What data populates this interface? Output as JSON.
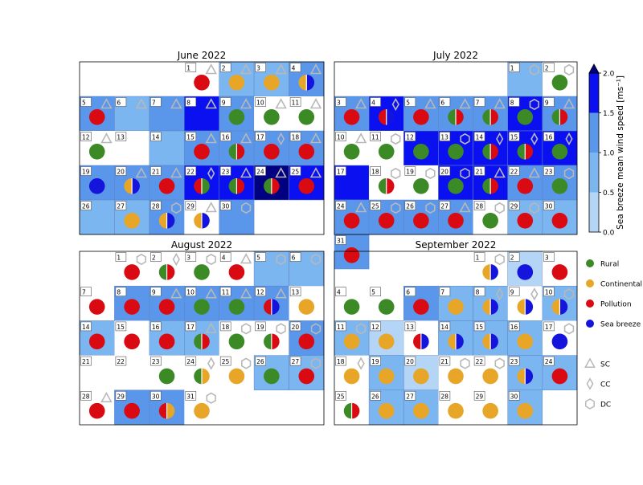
{
  "chart_data": {
    "type": "heatmap",
    "title": "",
    "colorbar": {
      "label": "Sea breeze mean wind speed [ms⁻¹]",
      "ticks": [
        "0.0",
        "0.5",
        "1.0",
        "1.5",
        "2.0"
      ],
      "bins": [
        0,
        0.5,
        1.0,
        1.5,
        2.0
      ],
      "colors": [
        "#b4d5f5",
        "#7cb6f0",
        "#5a96ea",
        "#0a10f0"
      ],
      "over_color": "#000080"
    },
    "category_colors": {
      "R": "#3c8a26",
      "C": "#e8a628",
      "P": "#d90a12",
      "S": "#1414dc"
    },
    "legend": {
      "circles": [
        {
          "key": "R",
          "label": "Rural"
        },
        {
          "key": "C",
          "label": "Continental"
        },
        {
          "key": "P",
          "label": "Pollution"
        },
        {
          "key": "S",
          "label": "Sea breeze"
        }
      ],
      "shapes": [
        {
          "shape": "triangle",
          "label": "SC"
        },
        {
          "shape": "diamond",
          "label": "CC"
        },
        {
          "shape": "hexagon",
          "label": "DC"
        }
      ]
    },
    "months": [
      {
        "title": "June 2022",
        "start_col": 3,
        "days": [
          {
            "d": 1,
            "ws": null,
            "c": [
              "P"
            ],
            "s": "T"
          },
          {
            "d": 2,
            "ws": 0.9,
            "c": [
              "C"
            ],
            "s": "T"
          },
          {
            "d": 3,
            "ws": 0.9,
            "c": [
              "C"
            ],
            "s": "T"
          },
          {
            "d": 4,
            "ws": 1.2,
            "c": [
              "C",
              "S"
            ],
            "s": "T"
          },
          {
            "d": 5,
            "ws": 1.2,
            "c": [
              "P"
            ],
            "s": "T"
          },
          {
            "d": 6,
            "ws": 0.8,
            "c": [],
            "s": "T"
          },
          {
            "d": 7,
            "ws": 1.2,
            "c": [],
            "s": "T"
          },
          {
            "d": 8,
            "ws": 1.7,
            "c": [],
            "s": "T"
          },
          {
            "d": 9,
            "ws": 1.2,
            "c": [
              "R"
            ],
            "s": "T"
          },
          {
            "d": 10,
            "ws": null,
            "c": [
              "R"
            ],
            "s": "T"
          },
          {
            "d": 11,
            "ws": null,
            "c": [
              "R"
            ],
            "s": "T"
          },
          {
            "d": 12,
            "ws": null,
            "c": [
              "R"
            ],
            "s": "T"
          },
          {
            "d": 13,
            "ws": null,
            "c": [],
            "s": null
          },
          {
            "d": 14,
            "ws": 0.9,
            "c": [],
            "s": null
          },
          {
            "d": 15,
            "ws": 1.2,
            "c": [
              "P"
            ],
            "s": "T"
          },
          {
            "d": 16,
            "ws": 1.2,
            "c": [
              "R",
              "P"
            ],
            "s": "T"
          },
          {
            "d": 17,
            "ws": 1.2,
            "c": [
              "P"
            ],
            "s": "D"
          },
          {
            "d": 18,
            "ws": 1.2,
            "c": [
              "P"
            ],
            "s": "T"
          },
          {
            "d": 19,
            "ws": 1.2,
            "c": [
              "S"
            ],
            "s": null
          },
          {
            "d": 20,
            "ws": 1.2,
            "c": [
              "C",
              "S"
            ],
            "s": "T"
          },
          {
            "d": 21,
            "ws": 1.2,
            "c": [
              "P"
            ],
            "s": "T"
          },
          {
            "d": 22,
            "ws": 1.7,
            "c": [
              "P",
              "R"
            ],
            "s": "D"
          },
          {
            "d": 23,
            "ws": 1.7,
            "c": [
              "R",
              "P"
            ],
            "s": "T"
          },
          {
            "d": 24,
            "ws": 2.2,
            "c": [
              "R",
              "P"
            ],
            "s": "T"
          },
          {
            "d": 25,
            "ws": 1.7,
            "c": [
              "P"
            ],
            "s": "T"
          },
          {
            "d": 26,
            "ws": 0.9,
            "c": [],
            "s": null
          },
          {
            "d": 27,
            "ws": 0.9,
            "c": [
              "C"
            ],
            "s": null
          },
          {
            "d": 28,
            "ws": 1.2,
            "c": [
              "C",
              "S"
            ],
            "s": "H"
          },
          {
            "d": 29,
            "ws": null,
            "c": [
              "C",
              "S"
            ],
            "s": "T"
          },
          {
            "d": 30,
            "ws": 1.2,
            "c": [],
            "s": "H"
          }
        ]
      },
      {
        "title": "July 2022",
        "start_col": 5,
        "days": [
          {
            "d": 1,
            "ws": 0.9,
            "c": [],
            "s": "H"
          },
          {
            "d": 2,
            "ws": null,
            "c": [
              "R"
            ],
            "s": "H"
          },
          {
            "d": 3,
            "ws": 1.2,
            "c": [
              "P"
            ],
            "s": "T"
          },
          {
            "d": 4,
            "ws": 1.7,
            "c": [
              "P",
              "S"
            ],
            "s": "D"
          },
          {
            "d": 5,
            "ws": 1.2,
            "c": [
              "P"
            ],
            "s": "T"
          },
          {
            "d": 6,
            "ws": 1.2,
            "c": [
              "R",
              "P"
            ],
            "s": "T"
          },
          {
            "d": 7,
            "ws": 1.2,
            "c": [
              "R",
              "P"
            ],
            "s": "T"
          },
          {
            "d": 8,
            "ws": 1.7,
            "c": [
              "R"
            ],
            "s": "H"
          },
          {
            "d": 9,
            "ws": 1.2,
            "c": [
              "R",
              "P"
            ],
            "s": "T"
          },
          {
            "d": 10,
            "ws": null,
            "c": [
              "R"
            ],
            "s": "T"
          },
          {
            "d": 11,
            "ws": null,
            "c": [
              "R"
            ],
            "s": "H"
          },
          {
            "d": 12,
            "ws": 1.7,
            "c": [
              "R"
            ],
            "s": null
          },
          {
            "d": 13,
            "ws": 1.7,
            "c": [
              "R"
            ],
            "s": "H"
          },
          {
            "d": 14,
            "ws": 1.7,
            "c": [
              "R",
              "P"
            ],
            "s": "D"
          },
          {
            "d": 15,
            "ws": 1.7,
            "c": [
              "R",
              "P"
            ],
            "s": "D"
          },
          {
            "d": 16,
            "ws": 1.7,
            "c": [
              "R"
            ],
            "s": "D"
          },
          {
            "d": 17,
            "ws": 1.7,
            "c": [],
            "s": null
          },
          {
            "d": 18,
            "ws": null,
            "c": [
              "R",
              "P"
            ],
            "s": "H"
          },
          {
            "d": 19,
            "ws": null,
            "c": [
              "R"
            ],
            "s": "H"
          },
          {
            "d": 20,
            "ws": 1.7,
            "c": [
              "R"
            ],
            "s": "H"
          },
          {
            "d": 21,
            "ws": 1.7,
            "c": [
              "R",
              "P"
            ],
            "s": "T"
          },
          {
            "d": 22,
            "ws": 1.2,
            "c": [
              "P"
            ],
            "s": "T"
          },
          {
            "d": 23,
            "ws": 1.2,
            "c": [
              "R"
            ],
            "s": "H"
          },
          {
            "d": 24,
            "ws": 1.2,
            "c": [
              "P"
            ],
            "s": "T"
          },
          {
            "d": 25,
            "ws": 1.2,
            "c": [
              "P"
            ],
            "s": "H"
          },
          {
            "d": 26,
            "ws": 1.2,
            "c": [
              "P"
            ],
            "s": "H"
          },
          {
            "d": 27,
            "ws": 1.2,
            "c": [
              "P"
            ],
            "s": "T"
          },
          {
            "d": 28,
            "ws": null,
            "c": [
              "R"
            ],
            "s": "H"
          },
          {
            "d": 29,
            "ws": 0.9,
            "c": [
              "P"
            ],
            "s": "H"
          },
          {
            "d": 30,
            "ws": 0.9,
            "c": [
              "P"
            ],
            "s": null
          },
          {
            "d": 31,
            "ws": 1.2,
            "c": [
              "P"
            ],
            "s": null
          }
        ]
      },
      {
        "title": "August 2022",
        "start_col": 1,
        "days": [
          {
            "d": 1,
            "ws": null,
            "c": [
              "P"
            ],
            "s": "H"
          },
          {
            "d": 2,
            "ws": null,
            "c": [
              "R",
              "P"
            ],
            "s": "D"
          },
          {
            "d": 3,
            "ws": null,
            "c": [
              "R"
            ],
            "s": "H"
          },
          {
            "d": 4,
            "ws": null,
            "c": [
              "P"
            ],
            "s": "T"
          },
          {
            "d": 5,
            "ws": 0.9,
            "c": [],
            "s": "H"
          },
          {
            "d": 6,
            "ws": 0.9,
            "c": [],
            "s": "H"
          },
          {
            "d": 7,
            "ws": null,
            "c": [
              "P"
            ],
            "s": null
          },
          {
            "d": 8,
            "ws": 1.2,
            "c": [
              "P"
            ],
            "s": null
          },
          {
            "d": 9,
            "ws": 1.2,
            "c": [
              "P"
            ],
            "s": "T"
          },
          {
            "d": 10,
            "ws": 1.2,
            "c": [
              "R"
            ],
            "s": "T"
          },
          {
            "d": 11,
            "ws": 1.2,
            "c": [
              "R"
            ],
            "s": "T"
          },
          {
            "d": 12,
            "ws": 1.2,
            "c": [
              "P",
              "S"
            ],
            "s": "T"
          },
          {
            "d": 13,
            "ws": null,
            "c": [
              "C"
            ],
            "s": null
          },
          {
            "d": 14,
            "ws": 0.9,
            "c": [
              "P"
            ],
            "s": null
          },
          {
            "d": 15,
            "ws": null,
            "c": [
              "P"
            ],
            "s": null
          },
          {
            "d": 16,
            "ws": 0.9,
            "c": [
              "P"
            ],
            "s": null
          },
          {
            "d": 17,
            "ws": 0.9,
            "c": [
              "R",
              "P"
            ],
            "s": "T"
          },
          {
            "d": 18,
            "ws": null,
            "c": [
              "R"
            ],
            "s": "H"
          },
          {
            "d": 19,
            "ws": null,
            "c": [
              "R",
              "P"
            ],
            "s": "H"
          },
          {
            "d": 20,
            "ws": 1.2,
            "c": [
              "P"
            ],
            "s": "H"
          },
          {
            "d": 21,
            "ws": null,
            "c": [],
            "s": null
          },
          {
            "d": 22,
            "ws": null,
            "c": [],
            "s": null
          },
          {
            "d": 23,
            "ws": null,
            "c": [
              "R"
            ],
            "s": null
          },
          {
            "d": 24,
            "ws": null,
            "c": [
              "R",
              "C"
            ],
            "s": "D"
          },
          {
            "d": 25,
            "ws": null,
            "c": [
              "C"
            ],
            "s": "H"
          },
          {
            "d": 26,
            "ws": 0.9,
            "c": [
              "R"
            ],
            "s": null
          },
          {
            "d": 27,
            "ws": 0.9,
            "c": [
              "P"
            ],
            "s": "H"
          },
          {
            "d": 28,
            "ws": null,
            "c": [
              "P"
            ],
            "s": "T"
          },
          {
            "d": 29,
            "ws": 1.2,
            "c": [
              "P"
            ],
            "s": null
          },
          {
            "d": 30,
            "ws": 1.2,
            "c": [
              "P",
              "C"
            ],
            "s": null
          },
          {
            "d": 31,
            "ws": null,
            "c": [
              "C"
            ],
            "s": "H"
          }
        ]
      },
      {
        "title": "September 2022",
        "start_col": 4,
        "days": [
          {
            "d": 1,
            "ws": null,
            "c": [
              "C",
              "S"
            ],
            "s": "H"
          },
          {
            "d": 2,
            "ws": 0.3,
            "c": [
              "S"
            ],
            "s": null
          },
          {
            "d": 3,
            "ws": null,
            "c": [
              "P"
            ],
            "s": null
          },
          {
            "d": 4,
            "ws": null,
            "c": [
              "R"
            ],
            "s": null
          },
          {
            "d": 5,
            "ws": null,
            "c": [
              "R"
            ],
            "s": null
          },
          {
            "d": 6,
            "ws": 1.2,
            "c": [
              "P"
            ],
            "s": null
          },
          {
            "d": 7,
            "ws": 0.9,
            "c": [
              "C"
            ],
            "s": null
          },
          {
            "d": 8,
            "ws": 0.9,
            "c": [
              "C",
              "S"
            ],
            "s": "D"
          },
          {
            "d": 9,
            "ws": null,
            "c": [
              "C",
              "S"
            ],
            "s": "D"
          },
          {
            "d": 10,
            "ws": 0.9,
            "c": [
              "C",
              "S"
            ],
            "s": "H"
          },
          {
            "d": 11,
            "ws": 0.9,
            "c": [
              "C"
            ],
            "s": "H"
          },
          {
            "d": 12,
            "ws": 0.3,
            "c": [
              "C"
            ],
            "s": null
          },
          {
            "d": 13,
            "ws": null,
            "c": [
              "P",
              "S"
            ],
            "s": null
          },
          {
            "d": 14,
            "ws": 0.9,
            "c": [
              "C",
              "S"
            ],
            "s": null
          },
          {
            "d": 15,
            "ws": 0.9,
            "c": [
              "C",
              "S"
            ],
            "s": null
          },
          {
            "d": 16,
            "ws": 0.9,
            "c": [
              "C"
            ],
            "s": null
          },
          {
            "d": 17,
            "ws": null,
            "c": [
              "S"
            ],
            "s": "H"
          },
          {
            "d": 18,
            "ws": null,
            "c": [
              "C"
            ],
            "s": "D"
          },
          {
            "d": 19,
            "ws": 0.9,
            "c": [
              "C"
            ],
            "s": null
          },
          {
            "d": 20,
            "ws": 0.3,
            "c": [
              "C"
            ],
            "s": null
          },
          {
            "d": 21,
            "ws": null,
            "c": [
              "C"
            ],
            "s": "H"
          },
          {
            "d": 22,
            "ws": null,
            "c": [
              "C"
            ],
            "s": "H"
          },
          {
            "d": 23,
            "ws": 0.9,
            "c": [
              "C",
              "S"
            ],
            "s": null
          },
          {
            "d": 24,
            "ws": 0.9,
            "c": [
              "P"
            ],
            "s": null
          },
          {
            "d": 25,
            "ws": null,
            "c": [
              "R",
              "P"
            ],
            "s": null
          },
          {
            "d": 26,
            "ws": 0.9,
            "c": [
              "C"
            ],
            "s": null
          },
          {
            "d": 27,
            "ws": 0.9,
            "c": [
              "C"
            ],
            "s": null
          },
          {
            "d": 28,
            "ws": null,
            "c": [
              "C"
            ],
            "s": null
          },
          {
            "d": 29,
            "ws": null,
            "c": [
              "C"
            ],
            "s": null
          },
          {
            "d": 30,
            "ws": 0.9,
            "c": [
              "C"
            ],
            "s": null
          }
        ]
      }
    ]
  }
}
